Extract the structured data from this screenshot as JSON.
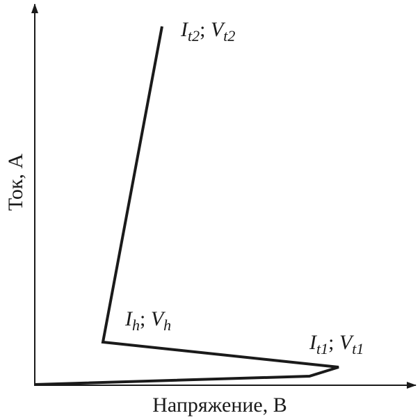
{
  "axes": {
    "y_label": "Ток, А",
    "x_label": "Напряжение, В"
  },
  "labels": [
    {
      "parts": [
        {
          "text": "I",
          "sub": "t2"
        },
        {
          "text": "; "
        },
        {
          "text": "V",
          "sub": "t2"
        }
      ]
    },
    {
      "parts": [
        {
          "text": "I",
          "sub": "h"
        },
        {
          "text": "; "
        },
        {
          "text": "V",
          "sub": "h"
        }
      ]
    },
    {
      "parts": [
        {
          "text": "I",
          "sub": "t1"
        },
        {
          "text": "; "
        },
        {
          "text": "V",
          "sub": "t1"
        }
      ]
    }
  ]
}
